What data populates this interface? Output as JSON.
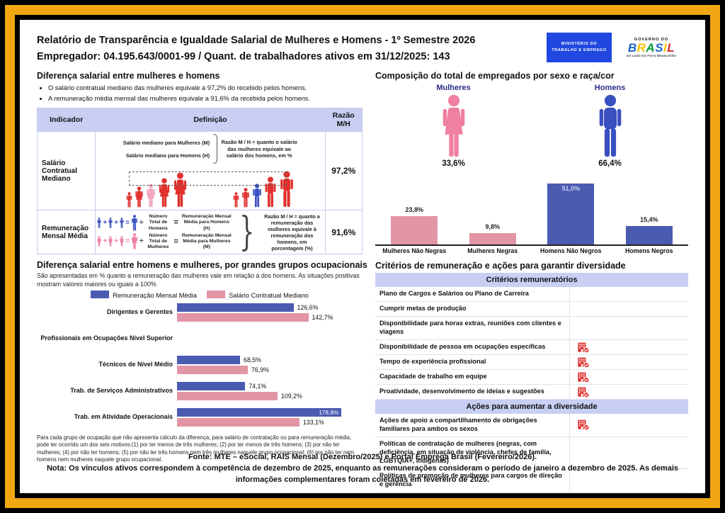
{
  "colors": {
    "frame_gold": "#F0A713",
    "lavender": "#C9CEF3",
    "bar_blue": "#4A5BB0",
    "bar_pink": "#E295A5",
    "icon_blue": "#3A50C0",
    "icon_pink": "#F0809F",
    "crowd_red": "#E0312E",
    "crowd_lightpink": "#F2A7BC",
    "navy_label": "#2B2B8C",
    "check_red": "#E03131"
  },
  "header": {
    "title1": "Relatório de Transparência e Igualdade Salarial de Mulheres e Homens - 1º Semestre 2026",
    "title2": "Empregador: 04.195.643/0001-99 / Quant. de trabalhadores ativos em 31/12/2025: 143",
    "mte_logo": "MINISTÉRIO DO TRABALHO E EMPREGO",
    "gov_top": "GOVERNO DO",
    "gov_word": "BRASIL",
    "gov_sub": "DO LADO DO POVO BRASILEIRO"
  },
  "left": {
    "sec1": {
      "title": "Diferença salarial entre mulheres e homens",
      "bullets": [
        "O salário contratual mediano das mulheres equivale a 97,2% do recebido pelos homens.",
        "A remuneração média mensal das mulheres equivale a 91,6% da recebida pelos homens."
      ],
      "table": {
        "headers": [
          "Indicador",
          "Definição",
          "Razão M/H"
        ],
        "r1": {
          "indicator": "Salário Contratual Mediano",
          "line_f": "Salário mediano para Mulheres (M)",
          "line_m": "Salário mediano para Homens (H)",
          "note": "Razão M / H = quanto o salário das mulheres equivale ao salário dos homens, em %",
          "ratio": "97,2%"
        },
        "r2": {
          "indicator": "Remuneração Mensal Média",
          "men": {
            "divide": "Número Total de Homens",
            "equals": "Remuneração Mensal Média para Homens (H)"
          },
          "women": {
            "divide": "Número Total de Mulheres",
            "equals": "Remuneração Mensal Média para Mulheres (M)"
          },
          "note": "Razão M / H = quanto a remuneração das mulheres equivale à remuneração dos homens, em porcentagem (%)",
          "ratio": "91,6%"
        },
        "ops": {
          "plus": "+",
          "eq": "=",
          "div": "÷",
          "brace": "}"
        }
      },
      "crowd_left": [
        {
          "t": "man",
          "h": 22,
          "c": "crowd_red"
        },
        {
          "t": "woman",
          "h": 30,
          "c": "crowd_red"
        },
        {
          "t": "woman",
          "h": 34,
          "c": "crowd_lightpink"
        },
        {
          "t": "woman",
          "h": 42,
          "c": "crowd_red"
        },
        {
          "t": "woman",
          "h": 50,
          "c": "crowd_red"
        }
      ],
      "crowd_right": [
        {
          "t": "man",
          "h": 22,
          "c": "crowd_red"
        },
        {
          "t": "man",
          "h": 28,
          "c": "crowd_red"
        },
        {
          "t": "man",
          "h": 34,
          "c": "icon_blue"
        },
        {
          "t": "man",
          "h": 44,
          "c": "crowd_red"
        },
        {
          "t": "man",
          "h": 52,
          "c": "crowd_red"
        }
      ]
    },
    "sec2": {
      "title": "Diferença salarial entre homens e mulheres, por grandes grupos ocupacionais",
      "subtitle": "São apresentadas em % quanto a remuneração das mulheres vale em relação à dos homens. As situações positivas mostram valores maiores ou iguais a 100%",
      "legend": [
        {
          "label": "Remuneração Mensal Média",
          "color": "#4A5BB0"
        },
        {
          "label": "Salário Contratual Mediano",
          "color": "#E295A5"
        }
      ],
      "footnote": "Para cada grupo de ocupação que não apresenta cálculo da diferença, para salário de contratação ou para remuneração média, pode ter ocorrido um dos seis motivos:(1) por ter menos de três mulheres; (2) por ter menos de três homens; (3) por não ter mulheres; (4) por não ter homens; (5) por não ter três homens nem três mulheres naquele grupo ocupacional; (6) por não ter nem homens nem mulheres naquele grupo ocupacional."
    }
  },
  "right": {
    "sec1": {
      "title": "Composição do total de empregados por sexo e raça/cor",
      "groups": [
        {
          "label": "Mulheres",
          "pct": "33,6%"
        },
        {
          "label": "Homens",
          "pct": "66,4%"
        }
      ]
    },
    "criteria": {
      "title": "Critérios de remuneração e ações para garantir diversidade",
      "sections": [
        {
          "header": "Critérios remuneratórios",
          "rows": [
            {
              "label": "Plano de Cargos e Salários ou Plano de Carreira",
              "checked": false
            },
            {
              "label": "Cumprir metas de produção",
              "checked": false
            },
            {
              "label": "Disponibilidade para horas extras, reuniões com clientes e viagens",
              "checked": false
            },
            {
              "label": "Disponibilidade de pessoa em ocupações específicas",
              "checked": true
            },
            {
              "label": "Tempo de experiência profissional",
              "checked": true
            },
            {
              "label": "Capacidade de trabalho em equipe",
              "checked": true
            },
            {
              "label": "Proatividade, desenvolvimento de ideias e sugestões",
              "checked": true
            }
          ]
        },
        {
          "header": "Ações para aumentar a diversidade",
          "rows": [
            {
              "label": "Ações de apoio a compartilhamento de obrigações familiares para ambos os sexos",
              "checked": true
            },
            {
              "label": "Políticas de contratação de mulheres (negras, com deficiência, em situação de violência, chefes de família, LGBTQIA+, Indígenas)",
              "checked": false
            },
            {
              "label": "Políticas de promoção de mulheres para cargos de direção e gerência",
              "checked": false
            }
          ]
        }
      ]
    }
  },
  "footer": {
    "fonte": "Fonte: MTE – eSocial, RAIS Mensal (Dezembro/2025) e Portal Emprega Brasil (Fevereiro/2026).",
    "nota": "Nota: Os vínculos ativos correspondem à competência de dezembro de 2025, enquanto as remunerações consideram o período de janeiro a dezembro de 2025. As demais informações complementares foram coletadas em fevereiro de 2026."
  },
  "chart_data": [
    {
      "type": "bar",
      "title": "Composição do total de empregados por sexo e raça/cor",
      "categories": [
        "Mulheres Não Negras",
        "Mulheres Negras",
        "Homens Não Negros",
        "Homens Negros"
      ],
      "values": [
        23.8,
        9.8,
        51.0,
        15.4
      ],
      "labels": [
        "23,8%",
        "9,8%",
        "51,0%",
        "15,4%"
      ],
      "colors": [
        "#E295A5",
        "#E295A5",
        "#4A5BB0",
        "#4A5BB0"
      ],
      "xlabel": "",
      "ylabel": "",
      "ylim": [
        0,
        55
      ],
      "grid": false,
      "legend_position": "none"
    },
    {
      "type": "bar",
      "orientation": "horizontal",
      "title": "Diferença salarial entre homens e mulheres, por grandes grupos ocupacionais",
      "categories": [
        "Dirigentes e Gerentes",
        "Profissionais em Ocupações Nível Superior",
        "Técnicos de Nível Médio",
        "Trab. de Serviços Administrativos",
        "Trab. em Atividade Operacionais"
      ],
      "series": [
        {
          "name": "Remuneração Mensal Média",
          "color": "#4A5BB0",
          "values": [
            126.6,
            null,
            68.5,
            74.1,
            178.8
          ],
          "labels": [
            "126,6%",
            "",
            "68,5%",
            "74,1%",
            "178,8%"
          ]
        },
        {
          "name": "Salário Contratual Mediano",
          "color": "#E295A5",
          "values": [
            142.7,
            null,
            76.9,
            109.2,
            133.1
          ],
          "labels": [
            "142,7%",
            "",
            "76,9%",
            "109,2%",
            "133,1%"
          ]
        }
      ],
      "xlim": [
        0,
        185
      ],
      "grid": false,
      "legend_position": "top"
    }
  ]
}
